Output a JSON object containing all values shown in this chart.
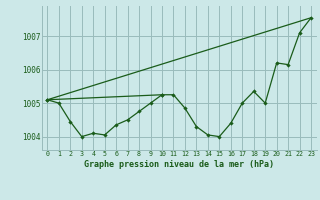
{
  "title": "Graphe pression niveau de la mer (hPa)",
  "background_color": "#cce8e8",
  "line_color": "#1a5c1a",
  "grid_color": "#99bbbb",
  "text_color": "#1a5c1a",
  "ylabel_ticks": [
    1004,
    1005,
    1006,
    1007
  ],
  "xlim": [
    -0.5,
    23.5
  ],
  "ylim": [
    1003.6,
    1007.9
  ],
  "series1_x": [
    0,
    1,
    2,
    3,
    4,
    5,
    6,
    7,
    8,
    9,
    10
  ],
  "series1_y": [
    1005.1,
    1005.0,
    1004.45,
    1004.0,
    1004.1,
    1004.05,
    1004.35,
    1004.5,
    1004.75,
    1005.0,
    1005.25
  ],
  "series2_x": [
    0,
    10,
    11,
    12,
    13,
    14,
    15,
    16,
    17,
    18,
    19,
    20,
    21,
    22,
    23
  ],
  "series2_y": [
    1005.1,
    1005.25,
    1005.25,
    1004.85,
    1004.3,
    1004.05,
    1004.0,
    1004.4,
    1005.0,
    1005.35,
    1005.0,
    1006.2,
    1006.15,
    1007.1,
    1007.55
  ],
  "series3_x": [
    0,
    23
  ],
  "series3_y": [
    1005.1,
    1007.55
  ]
}
